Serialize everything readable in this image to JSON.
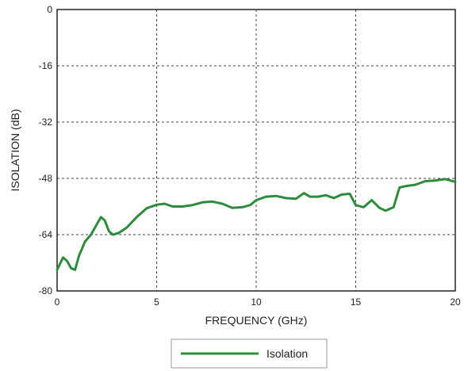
{
  "chart_data": {
    "type": "line",
    "xlabel": "FREQUENCY (GHz)",
    "ylabel": "ISOLATION (dB)",
    "xlim": [
      0,
      20
    ],
    "ylim": [
      -80,
      0
    ],
    "xticks": [
      "0",
      "5",
      "10",
      "15",
      "20"
    ],
    "yticks": [
      "0",
      "-16",
      "-32",
      "-48",
      "-64",
      "-80"
    ],
    "grid": true,
    "legend_position": "bottom-center",
    "series": [
      {
        "name": "Isolation",
        "color": "#2e8b3e",
        "x": [
          0,
          0.3,
          0.5,
          0.7,
          0.9,
          1.1,
          1.4,
          1.7,
          2.0,
          2.2,
          2.4,
          2.6,
          2.8,
          3.1,
          3.5,
          4.0,
          4.5,
          5.0,
          5.4,
          5.8,
          6.3,
          6.8,
          7.3,
          7.8,
          8.3,
          8.8,
          9.3,
          9.7,
          10.0,
          10.5,
          11.0,
          11.5,
          12.0,
          12.4,
          12.7,
          13.1,
          13.5,
          13.9,
          14.3,
          14.7,
          15.0,
          15.4,
          15.8,
          16.2,
          16.5,
          16.9,
          17.2,
          17.5,
          18.0,
          18.5,
          19.0,
          19.5,
          20.0
        ],
        "y": [
          -74,
          -70.5,
          -71.5,
          -73.5,
          -74,
          -70,
          -66,
          -64,
          -61,
          -59,
          -60,
          -63,
          -64,
          -63.5,
          -62,
          -59,
          -56.5,
          -55.5,
          -55.2,
          -56,
          -56,
          -55.6,
          -54.8,
          -54.6,
          -55.2,
          -56.4,
          -56.2,
          -55.6,
          -54.2,
          -53.2,
          -53,
          -53.6,
          -53.8,
          -52.2,
          -53.2,
          -53.2,
          -52.8,
          -53.6,
          -52.6,
          -52.4,
          -55.6,
          -56.2,
          -54.2,
          -56.4,
          -57.2,
          -56.2,
          -50.6,
          -50.2,
          -49.8,
          -48.8,
          -48.6,
          -48.2,
          -49
        ]
      }
    ]
  }
}
